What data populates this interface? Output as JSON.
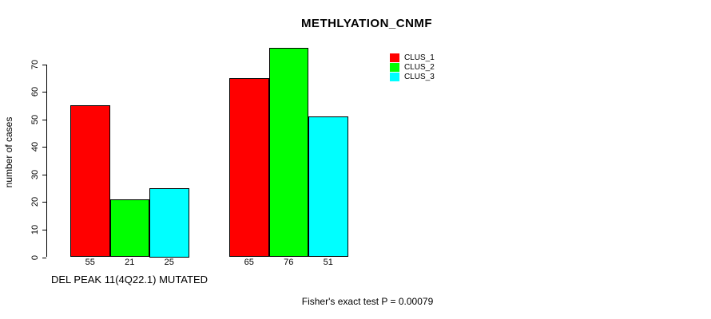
{
  "chart_data": {
    "type": "bar",
    "title": "METHLYATION_CNMF",
    "ylabel": "number of cases",
    "xlabel": "DEL PEAK 11(4Q22.1) MUTATED",
    "ylim": [
      0,
      76
    ],
    "yticks": [
      0,
      10,
      20,
      30,
      40,
      50,
      60,
      70
    ],
    "grid": false,
    "legend_position": "top-right",
    "groups": [
      "DEL PEAK 11(4Q22.1) MUTATED",
      ""
    ],
    "series": [
      {
        "name": "CLUS_1",
        "color": "#FF0000",
        "values": [
          55,
          65
        ]
      },
      {
        "name": "CLUS_2",
        "color": "#00FF00",
        "values": [
          21,
          76
        ]
      },
      {
        "name": "CLUS_3",
        "color": "#00FFFF",
        "values": [
          25,
          51
        ]
      }
    ],
    "bar_value_labels": [
      [
        55,
        21,
        25
      ],
      [
        65,
        76,
        51
      ]
    ],
    "footer": "Fisher's exact test P = 0.00079"
  }
}
